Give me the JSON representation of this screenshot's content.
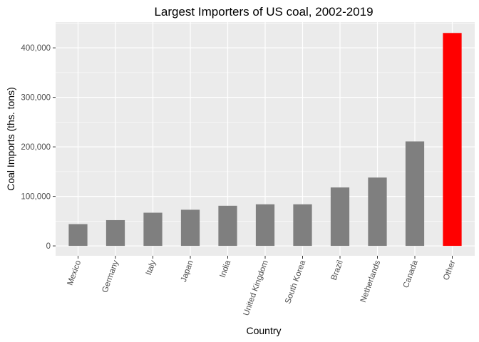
{
  "chart_data": {
    "type": "bar",
    "title": "Largest Importers of US coal, 2002-2019",
    "xlabel": "Country",
    "ylabel": "Coal Imports (ths. tons)",
    "categories": [
      "Mexico",
      "Germany",
      "Italy",
      "Japan",
      "India",
      "United Kingdom",
      "South Korea",
      "Brazil",
      "Netherlands",
      "Canada",
      "Other"
    ],
    "values": [
      44000,
      52000,
      67000,
      73000,
      81000,
      84000,
      84000,
      118000,
      138000,
      211000,
      430000
    ],
    "ylim": [
      -20000,
      452000
    ],
    "yticks": [
      0,
      100000,
      200000,
      300000,
      400000
    ],
    "ytick_labels": [
      "0",
      "100,000",
      "200,000",
      "300,000",
      "400,000"
    ],
    "grid": true,
    "bar_colors": [
      "#7f7f7f",
      "#7f7f7f",
      "#7f7f7f",
      "#7f7f7f",
      "#7f7f7f",
      "#7f7f7f",
      "#7f7f7f",
      "#7f7f7f",
      "#7f7f7f",
      "#7f7f7f",
      "#ff0000"
    ],
    "panel_background": "#ebebeb",
    "grid_color": "#ffffff"
  }
}
